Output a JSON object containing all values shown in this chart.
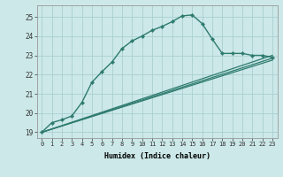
{
  "xlabel": "Humidex (Indice chaleur)",
  "bg_color": "#cce8e8",
  "line_color": "#2e7b6e",
  "grid_color": "#aacfcf",
  "xlim": [
    -0.5,
    23.5
  ],
  "ylim": [
    18.7,
    25.6
  ],
  "xticks": [
    0,
    1,
    2,
    3,
    4,
    5,
    6,
    7,
    8,
    9,
    10,
    11,
    12,
    13,
    14,
    15,
    16,
    17,
    18,
    19,
    20,
    21,
    22,
    23
  ],
  "yticks": [
    19,
    20,
    21,
    22,
    23,
    24,
    25
  ],
  "curve1_x": [
    0,
    1,
    2,
    3,
    4,
    5,
    6,
    7,
    8,
    9,
    10,
    11,
    12,
    13,
    14,
    15,
    16,
    17,
    18,
    19,
    20,
    21,
    22,
    23
  ],
  "curve1_y": [
    19.0,
    19.5,
    19.65,
    19.85,
    20.55,
    21.6,
    22.15,
    22.65,
    23.35,
    23.75,
    24.0,
    24.3,
    24.5,
    24.75,
    25.05,
    25.1,
    24.65,
    23.85,
    23.1,
    23.1,
    23.1,
    23.0,
    23.0,
    22.9
  ],
  "curve2_x": [
    0,
    23
  ],
  "curve2_y": [
    19.0,
    23.0
  ],
  "curve3_x": [
    0,
    23
  ],
  "curve3_y": [
    19.0,
    22.85
  ],
  "curve4_x": [
    0,
    23
  ],
  "curve4_y": [
    19.0,
    22.75
  ]
}
